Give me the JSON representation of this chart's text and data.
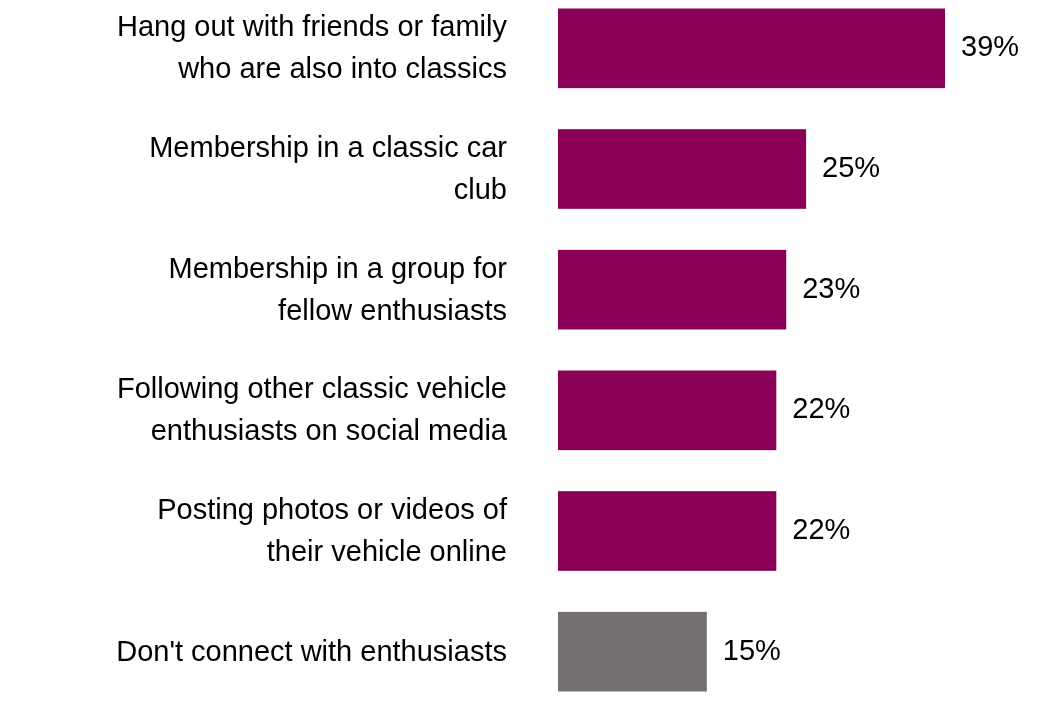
{
  "chart_data": {
    "type": "bar",
    "orientation": "horizontal",
    "categories": [
      "Hang out with friends or family who are also into classics",
      "Membership in a classic car club",
      "Membership in a group for fellow enthusiasts",
      "Following other classic vehicle enthusiasts on social media",
      "Posting photos or videos of their vehicle online",
      "Don't connect with enthusiasts"
    ],
    "values": [
      39,
      25,
      23,
      22,
      22,
      15
    ],
    "colors": [
      "#8b0057",
      "#8b0057",
      "#8b0057",
      "#8b0057",
      "#8b0057",
      "#767171"
    ],
    "value_labels": [
      "39%",
      "25%",
      "23%",
      "22%",
      "22%",
      "15%"
    ]
  }
}
